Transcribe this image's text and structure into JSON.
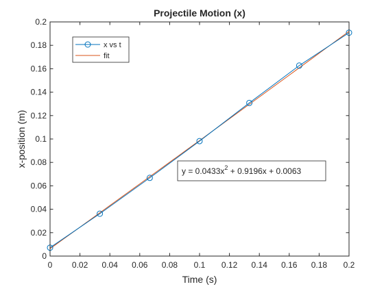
{
  "chart_data": {
    "type": "line",
    "title": "Projectile Motion (x)",
    "xlabel": "Time (s)",
    "ylabel": "x-position (m)",
    "xlim": [
      0,
      0.2
    ],
    "ylim": [
      0,
      0.2
    ],
    "xticks": [
      "0",
      "0.02",
      "0.04",
      "0.06",
      "0.08",
      "0.1",
      "0.12",
      "0.14",
      "0.16",
      "0.18",
      "0.2"
    ],
    "yticks": [
      "0",
      "0.02",
      "0.04",
      "0.06",
      "0.08",
      "0.1",
      "0.12",
      "0.14",
      "0.16",
      "0.18",
      "0.2"
    ],
    "grid": false,
    "legend_position": "top-left",
    "series": [
      {
        "name": "x vs t",
        "style": "line-with-circle-markers",
        "color": "#0072BD",
        "x": [
          0,
          0.0333,
          0.0667,
          0.1,
          0.1333,
          0.1667,
          0.2
        ],
        "y": [
          0.0072,
          0.0362,
          0.0668,
          0.0982,
          0.1308,
          0.1627,
          0.1908
        ]
      },
      {
        "name": "fit",
        "style": "line",
        "color": "#D95319",
        "fit_coefficients": [
          0.0433,
          0.9196,
          0.0063
        ]
      }
    ],
    "annotation": {
      "text_prefix": "y = 0.0433x",
      "text_superscript": "2",
      "text_suffix": " + 0.9196x + 0.0063"
    }
  }
}
